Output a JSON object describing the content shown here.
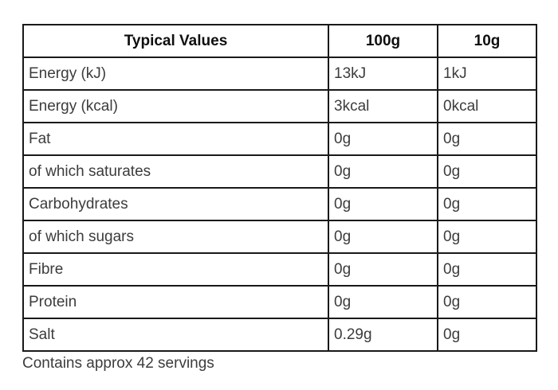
{
  "table": {
    "headers": [
      "Typical Values",
      "100g",
      "10g"
    ],
    "rows": [
      {
        "label": "Energy (kJ)",
        "per100g": "13kJ",
        "per10g": "1kJ"
      },
      {
        "label": "Energy (kcal)",
        "per100g": "3kcal",
        "per10g": "0kcal"
      },
      {
        "label": "Fat",
        "per100g": "0g",
        "per10g": "0g"
      },
      {
        "label": "of which saturates",
        "per100g": "0g",
        "per10g": "0g"
      },
      {
        "label": "Carbohydrates",
        "per100g": "0g",
        "per10g": "0g"
      },
      {
        "label": "of which sugars",
        "per100g": "0g",
        "per10g": "0g"
      },
      {
        "label": "Fibre",
        "per100g": "0g",
        "per10g": "0g"
      },
      {
        "label": "Protein",
        "per100g": "0g",
        "per10g": "0g"
      },
      {
        "label": "Salt",
        "per100g": "0.29g",
        "per10g": "0g"
      }
    ]
  },
  "footer": {
    "servings_note": "Contains approx 42 servings"
  },
  "colors": {
    "background": "#ffffff",
    "border": "#191919",
    "header_text": "#0f0f0f",
    "body_text": "#3c3c3c"
  }
}
